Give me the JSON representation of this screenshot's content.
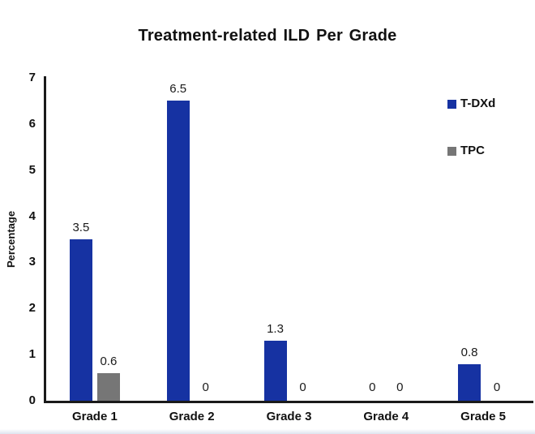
{
  "chart_data": {
    "type": "bar",
    "title": "Treatment-related ILD Per Grade",
    "categories": [
      "Grade 1",
      "Grade 2",
      "Grade 3",
      "Grade 4",
      "Grade 5"
    ],
    "series": [
      {
        "name": "T-DXd",
        "color": "#1632A2",
        "values": [
          3.5,
          6.5,
          1.3,
          0,
          0.8
        ],
        "labels": [
          "3.5",
          "6.5",
          "1.3",
          "0",
          "0.8"
        ]
      },
      {
        "name": "TPC",
        "color": "#767676",
        "values": [
          0.6,
          0,
          0,
          0,
          0
        ],
        "labels": [
          "0.6",
          "0",
          "0",
          "0",
          "0"
        ]
      }
    ],
    "xlabel": "",
    "ylabel": "Percentage",
    "ylim": [
      0,
      7
    ],
    "yticks": [
      0,
      1,
      2,
      3,
      4,
      5,
      6,
      7
    ],
    "grid": false,
    "legend_position": "upper right",
    "axis_color": "#1a1a1a",
    "background_color": "#ffffff"
  }
}
